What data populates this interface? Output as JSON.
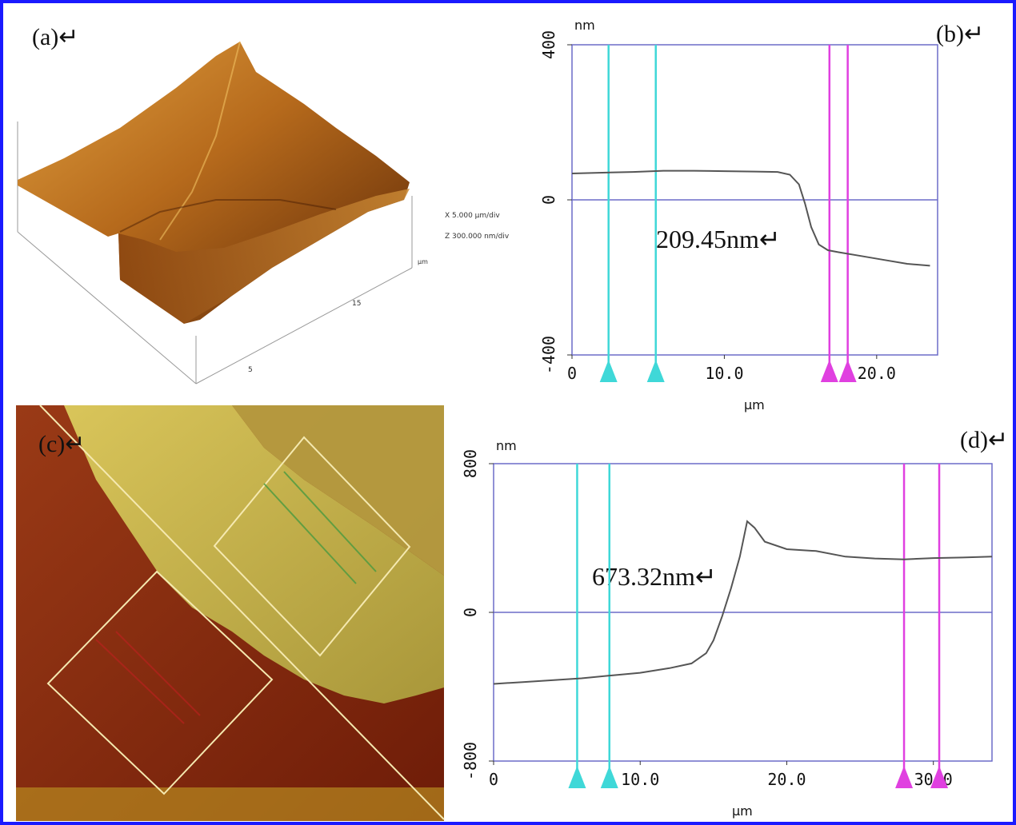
{
  "figure": {
    "border_color": "#1a1aff",
    "panel_labels": {
      "a": "(a)↵",
      "b": "(b)↵",
      "c": "(c)↵",
      "d": "(d)↵"
    }
  },
  "panel_a": {
    "axis_note_x": "X 5.000 µm/div",
    "axis_note_z": "Z 300.000 nm/div",
    "tick_labels": [
      "15",
      "5"
    ],
    "corner_label": "µm",
    "colors": {
      "surface_light": "#d08a2a",
      "surface_dark": "#6a2e08"
    }
  },
  "panel_c": {
    "colors": {
      "film": "#c8b14a",
      "substrate": "#8a2a10",
      "frame": "#f5e9b0"
    }
  },
  "chart_data": [
    {
      "type": "line",
      "panel": "b",
      "ylabel": "nm",
      "xlabel": "µm",
      "ylim": [
        -400,
        400
      ],
      "xlim": [
        0,
        24
      ],
      "yticks": [
        400,
        0,
        -400
      ],
      "ytick_labels": [
        "400",
        "0",
        "-400"
      ],
      "xticks": [
        0,
        10,
        20
      ],
      "xtick_labels": [
        "0",
        "10.0",
        "20.0"
      ],
      "annotation": "209.45nm↵",
      "colors": {
        "frame": "#6c6cc8",
        "profile": "#555555",
        "cursor_a": "#3fd8d8",
        "cursor_b": "#e040e0"
      },
      "cursors": [
        {
          "x": 2.4,
          "color": "cyan"
        },
        {
          "x": 5.5,
          "color": "cyan"
        },
        {
          "x": 16.9,
          "color": "magenta"
        },
        {
          "x": 18.1,
          "color": "magenta"
        }
      ],
      "series": [
        {
          "x": [
            0,
            2,
            4,
            6,
            8,
            10,
            12,
            13.5,
            14.3,
            14.9,
            15.3,
            15.7,
            16.2,
            16.8,
            17.5,
            19,
            20.5,
            22,
            23.5
          ],
          "y": [
            68,
            70,
            72,
            75,
            75,
            74,
            73,
            72,
            65,
            40,
            -10,
            -70,
            -115,
            -130,
            -135,
            -145,
            -155,
            -165,
            -170
          ]
        }
      ]
    },
    {
      "type": "line",
      "panel": "d",
      "ylabel": "nm",
      "xlabel": "µm",
      "ylim": [
        -800,
        800
      ],
      "xlim": [
        0,
        34
      ],
      "yticks": [
        800,
        0,
        -800
      ],
      "ytick_labels": [
        "800",
        "0",
        "-800"
      ],
      "xticks": [
        0,
        10,
        20,
        30
      ],
      "xtick_labels": [
        "0",
        "10.0",
        "20.0",
        "30.0"
      ],
      "annotation": "673.32nm↵",
      "colors": {
        "frame": "#6c6cc8",
        "profile": "#555555",
        "cursor_a": "#3fd8d8",
        "cursor_b": "#e040e0"
      },
      "cursors": [
        {
          "x": 5.7,
          "color": "cyan"
        },
        {
          "x": 7.9,
          "color": "cyan"
        },
        {
          "x": 28.0,
          "color": "magenta"
        },
        {
          "x": 30.4,
          "color": "magenta"
        }
      ],
      "series": [
        {
          "x": [
            0,
            2,
            4,
            6,
            8,
            10,
            12,
            13.5,
            14.5,
            15,
            15.6,
            16.2,
            16.8,
            17.3,
            17.8,
            18.5,
            20,
            22,
            24,
            26,
            28,
            30,
            32,
            34
          ],
          "y": [
            -385,
            -375,
            -365,
            -355,
            -340,
            -325,
            -300,
            -275,
            -220,
            -150,
            -20,
            130,
            300,
            490,
            455,
            380,
            340,
            330,
            300,
            290,
            285,
            292,
            295,
            300
          ]
        }
      ]
    }
  ]
}
